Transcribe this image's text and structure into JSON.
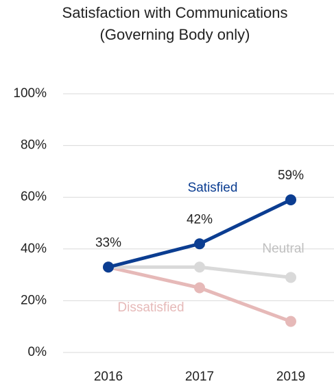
{
  "chart_data": {
    "type": "line",
    "title": "Satisfaction with Communications",
    "subtitle": "(Governing Body only)",
    "categories": [
      "2016",
      "2017",
      "2019"
    ],
    "series": [
      {
        "name": "Satisfied",
        "color": "#0b3d91",
        "values": [
          33,
          42,
          59
        ],
        "value_labels": [
          "33%",
          "42%",
          "59%"
        ]
      },
      {
        "name": "Neutral",
        "color": "#d9d9d9",
        "values": [
          33,
          33,
          29
        ]
      },
      {
        "name": "Dissatisfied",
        "color": "#e6b9b8",
        "values": [
          33,
          25,
          12
        ]
      }
    ],
    "ylim": [
      0,
      100
    ],
    "yticks": [
      {
        "value": 0,
        "label": "0%"
      },
      {
        "value": 20,
        "label": "20%"
      },
      {
        "value": 40,
        "label": "40%"
      },
      {
        "value": 60,
        "label": "60%"
      },
      {
        "value": 80,
        "label": "80%"
      },
      {
        "value": 100,
        "label": "100%"
      }
    ],
    "grid": true
  }
}
